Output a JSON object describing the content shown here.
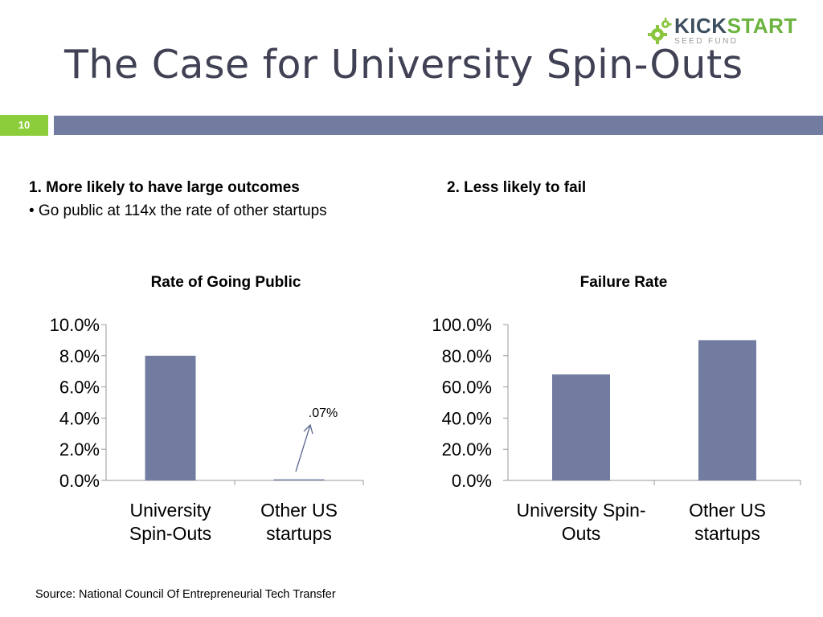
{
  "slide": {
    "title": "The Case for University Spin-Outs",
    "slide_number": "10",
    "accent_colors": {
      "band": "#717ca0",
      "slide_number_bg": "#8ccd3b",
      "title": "#404154",
      "bar": "#717ca0"
    }
  },
  "logo": {
    "kick": "KICK",
    "start": "START",
    "subtitle": "SEED FUND",
    "kick_color": "#3d4f5e",
    "start_color": "#6cb33f",
    "icon": "gear-icon"
  },
  "left_heading": "1. More likely to have large outcomes",
  "left_bullet": "• Go public at 114x the rate of other startups",
  "right_heading": "2.  Less likely to fail",
  "source": "Source: National Council Of Entrepreneurial Tech Transfer",
  "chart_data": [
    {
      "type": "bar",
      "title": "Rate of Going Public",
      "categories": [
        [
          "University",
          "Spin-Outs"
        ],
        [
          "Other US",
          "startups"
        ]
      ],
      "values": [
        8.0,
        0.07
      ],
      "ylim": [
        0,
        10
      ],
      "yticks": [
        "0.0%",
        "2.0%",
        "4.0%",
        "6.0%",
        "8.0%",
        "10.0%"
      ],
      "ytick_values": [
        0,
        2,
        4,
        6,
        8,
        10
      ],
      "annotation": {
        "text": ".07%",
        "category_index": 1
      },
      "grid": false,
      "legend": "none"
    },
    {
      "type": "bar",
      "title": "Failure Rate",
      "categories": [
        [
          "University Spin-",
          "Outs"
        ],
        [
          "Other US",
          "startups"
        ]
      ],
      "values": [
        68,
        90
      ],
      "ylim": [
        0,
        100
      ],
      "yticks": [
        "0.0%",
        "20.0%",
        "40.0%",
        "60.0%",
        "80.0%",
        "100.0%"
      ],
      "ytick_values": [
        0,
        20,
        40,
        60,
        80,
        100
      ],
      "grid": false,
      "legend": "none"
    }
  ]
}
